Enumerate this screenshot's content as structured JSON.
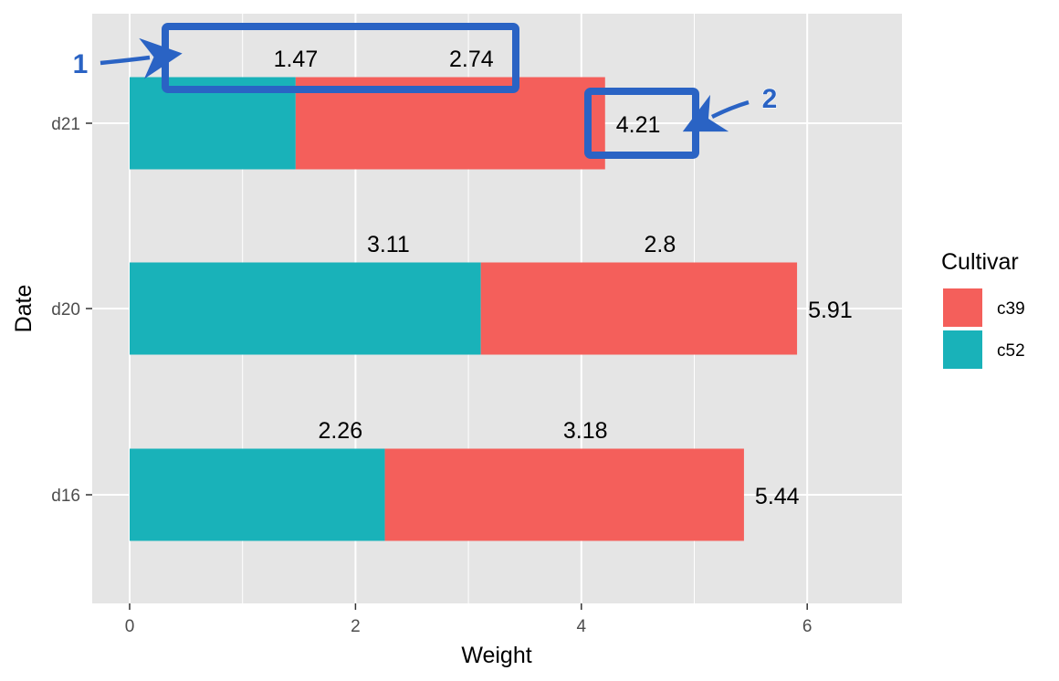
{
  "chart_data": {
    "type": "bar",
    "orientation": "horizontal",
    "stacked": true,
    "categories": [
      "d16",
      "d20",
      "d21"
    ],
    "series": [
      {
        "name": "c52",
        "values": [
          2.26,
          3.11,
          1.47
        ],
        "color": "#19b2b9"
      },
      {
        "name": "c39",
        "values": [
          3.18,
          2.8,
          2.74
        ],
        "color": "#f45f5b"
      }
    ],
    "totals": [
      5.44,
      5.91,
      4.21
    ],
    "segment_labels": [
      {
        "category": "d16",
        "c52": "2.26",
        "c39": "3.18",
        "total": "5.44"
      },
      {
        "category": "d20",
        "c52": "3.11",
        "c39": "2.8",
        "total": "5.91"
      },
      {
        "category": "d21",
        "c52": "1.47",
        "c39": "2.74",
        "total": "4.21"
      }
    ],
    "xlabel": "Weight",
    "ylabel": "Date",
    "xlim": [
      -0.3,
      6.8
    ],
    "xticks": [
      "0",
      "2",
      "4",
      "6"
    ],
    "grid": true,
    "panel_background": "#e5e5e5",
    "legend": {
      "title": "Cultivar",
      "placement": "right",
      "entries": [
        {
          "label": "c39",
          "color": "#f45f5b"
        },
        {
          "label": "c52",
          "color": "#19b2b9"
        }
      ]
    },
    "annotations": [
      {
        "marker": "1",
        "target": "d21 segment labels 1.47 and 2.74",
        "color": "#2a63c4"
      },
      {
        "marker": "2",
        "target": "d21 total label 4.21",
        "color": "#2a63c4"
      }
    ]
  }
}
